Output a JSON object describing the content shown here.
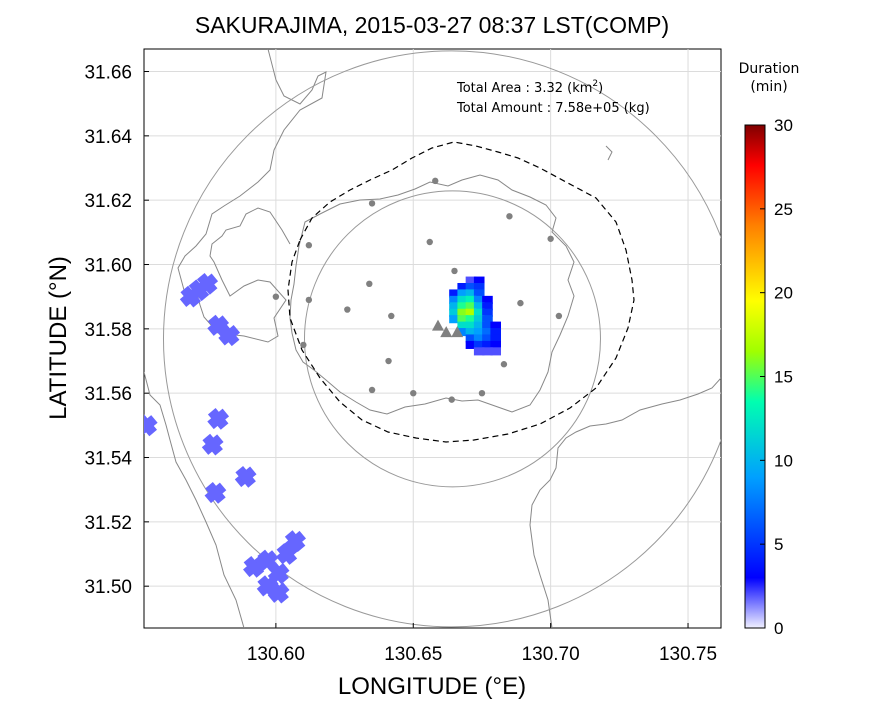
{
  "chart_data": {
    "type": "heatmap",
    "title": "SAKURAJIMA, 2015-03-27 08:37 LST(COMP)",
    "xlabel": "LONGITUDE (°E)",
    "ylabel": "LATITUDE (°N)",
    "xlim": [
      130.552,
      130.762
    ],
    "ylim": [
      31.487,
      31.667
    ],
    "x_ticks": [
      "130.60",
      "130.65",
      "130.70",
      "130.75"
    ],
    "y_ticks": [
      "31.50",
      "31.52",
      "31.54",
      "31.56",
      "31.58",
      "31.60",
      "31.62",
      "31.64",
      "31.66"
    ],
    "grid": true,
    "annotations": {
      "area_label": "Total Area   : 3.32 (km",
      "area_sup": "2",
      "area_close": ")",
      "amount_label": "Total Amount : 7.58e+05 (kg)"
    },
    "colorbar": {
      "title_line1": "Duration",
      "title_line2": "(min)",
      "range": [
        0,
        30
      ],
      "ticks": [
        "0",
        "5",
        "10",
        "15",
        "20",
        "25",
        "30"
      ]
    },
    "vent": {
      "lon": 130.665,
      "lat": 31.58
    },
    "vent_markers": [
      {
        "lon": 130.659,
        "lat": 31.581
      },
      {
        "lon": 130.662,
        "lat": 31.579
      },
      {
        "lon": 130.666,
        "lat": 31.579
      }
    ],
    "station_points": [
      [
        130.635,
        31.619
      ],
      [
        130.658,
        31.626
      ],
      [
        130.685,
        31.615
      ],
      [
        130.7,
        31.608
      ],
      [
        130.612,
        31.606
      ],
      [
        130.656,
        31.607
      ],
      [
        130.665,
        31.598
      ],
      [
        130.6,
        31.59
      ],
      [
        130.612,
        31.589
      ],
      [
        130.634,
        31.594
      ],
      [
        130.689,
        31.588
      ],
      [
        130.626,
        31.586
      ],
      [
        130.642,
        31.584
      ],
      [
        130.703,
        31.584
      ],
      [
        130.61,
        31.575
      ],
      [
        130.641,
        31.57
      ],
      [
        130.683,
        31.569
      ],
      [
        130.635,
        31.561
      ],
      [
        130.65,
        31.56
      ],
      [
        130.675,
        31.56
      ],
      [
        130.664,
        31.558
      ]
    ],
    "ash_cells_duration_min": [
      [
        130.671,
        31.595,
        2
      ],
      [
        130.674,
        31.595,
        3
      ],
      [
        130.668,
        31.593,
        4
      ],
      [
        130.671,
        31.593,
        6
      ],
      [
        130.674,
        31.593,
        5
      ],
      [
        130.665,
        31.591,
        4
      ],
      [
        130.668,
        31.591,
        9
      ],
      [
        130.671,
        31.591,
        10
      ],
      [
        130.674,
        31.591,
        6
      ],
      [
        130.665,
        31.589,
        8
      ],
      [
        130.668,
        31.589,
        12
      ],
      [
        130.671,
        31.589,
        13
      ],
      [
        130.674,
        31.589,
        8
      ],
      [
        130.677,
        31.589,
        3
      ],
      [
        130.665,
        31.587,
        10
      ],
      [
        130.668,
        31.587,
        14
      ],
      [
        130.671,
        31.587,
        15
      ],
      [
        130.674,
        31.587,
        10
      ],
      [
        130.677,
        31.587,
        4
      ],
      [
        130.665,
        31.585,
        11
      ],
      [
        130.668,
        31.585,
        16
      ],
      [
        130.671,
        31.585,
        17
      ],
      [
        130.674,
        31.585,
        12
      ],
      [
        130.677,
        31.585,
        5
      ],
      [
        130.665,
        31.583,
        9
      ],
      [
        130.668,
        31.583,
        15
      ],
      [
        130.671,
        31.583,
        14
      ],
      [
        130.674,
        31.583,
        11
      ],
      [
        130.677,
        31.583,
        6
      ],
      [
        130.668,
        31.581,
        12
      ],
      [
        130.671,
        31.581,
        12
      ],
      [
        130.674,
        31.581,
        10
      ],
      [
        130.677,
        31.581,
        6
      ],
      [
        130.68,
        31.581,
        3
      ],
      [
        130.668,
        31.579,
        8
      ],
      [
        130.671,
        31.579,
        10
      ],
      [
        130.674,
        31.579,
        9
      ],
      [
        130.677,
        31.579,
        7
      ],
      [
        130.68,
        31.579,
        4
      ],
      [
        130.671,
        31.577,
        6
      ],
      [
        130.674,
        31.577,
        8
      ],
      [
        130.677,
        31.577,
        6
      ],
      [
        130.68,
        31.577,
        4
      ],
      [
        130.671,
        31.575,
        3
      ],
      [
        130.674,
        31.575,
        5
      ],
      [
        130.677,
        31.575,
        4
      ],
      [
        130.68,
        31.575,
        3
      ],
      [
        130.677,
        31.573,
        2
      ],
      [
        130.68,
        31.573,
        2
      ],
      [
        130.674,
        31.573,
        2
      ]
    ],
    "west_cells_duration_min": [
      [
        130.569,
        31.59,
        2
      ],
      [
        130.572,
        31.592,
        2
      ],
      [
        130.575,
        31.594,
        2
      ],
      [
        130.579,
        31.581,
        2
      ],
      [
        130.583,
        31.578,
        2
      ],
      [
        130.579,
        31.552,
        2
      ],
      [
        130.577,
        31.544,
        2
      ],
      [
        130.578,
        31.529,
        2
      ],
      [
        130.589,
        31.534,
        2
      ],
      [
        130.553,
        31.55,
        2
      ],
      [
        130.592,
        31.506,
        2
      ],
      [
        130.597,
        31.508,
        2
      ],
      [
        130.601,
        31.504,
        2
      ],
      [
        130.604,
        31.51,
        2
      ],
      [
        130.607,
        31.514,
        2
      ],
      [
        130.597,
        31.5,
        2
      ],
      [
        130.601,
        31.498,
        2
      ]
    ]
  }
}
